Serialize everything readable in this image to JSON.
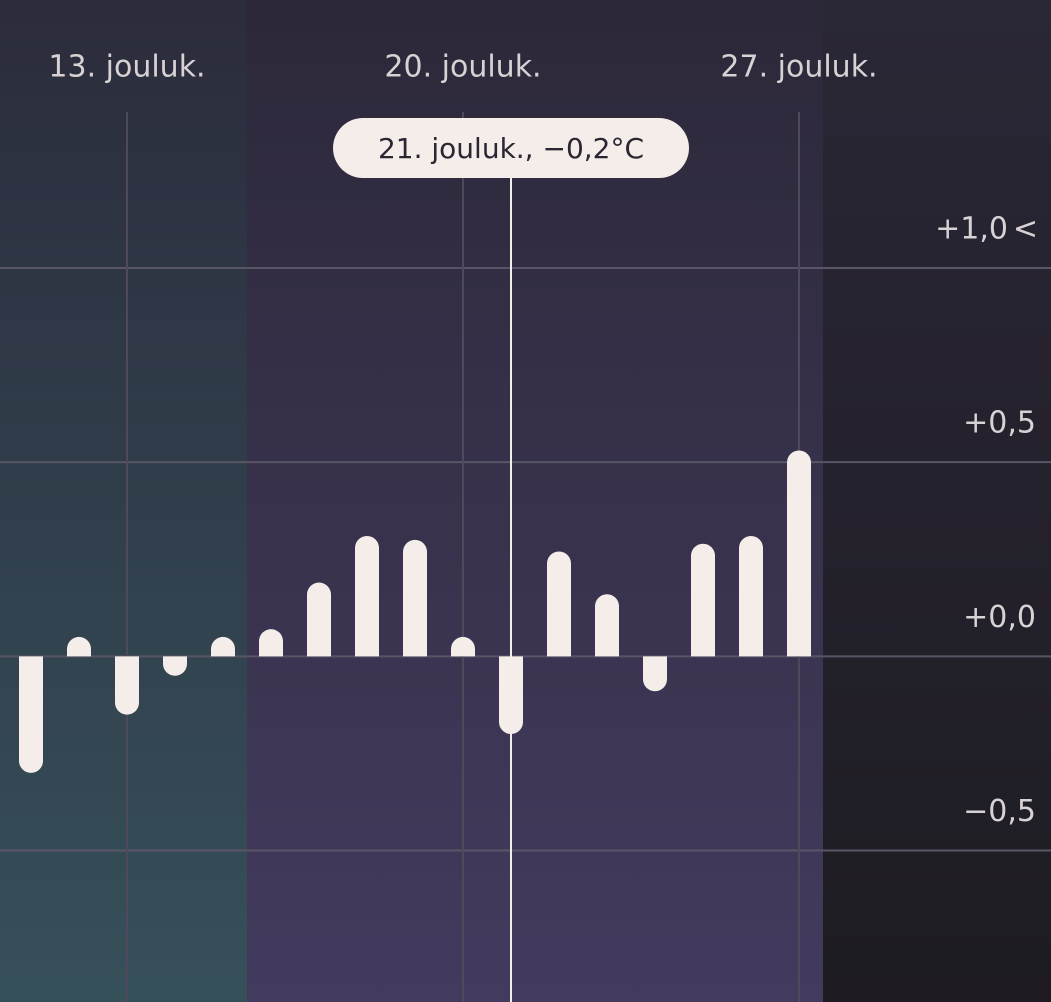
{
  "chart_data": {
    "type": "bar",
    "categories": [
      null,
      null,
      "13. jouluk.",
      null,
      null,
      null,
      null,
      null,
      null,
      "20. jouluk.",
      null,
      null,
      null,
      null,
      null,
      null,
      "27. jouluk."
    ],
    "values": [
      -0.3,
      0.05,
      -0.15,
      -0.05,
      0.05,
      0.07,
      0.19,
      0.31,
      0.3,
      0.05,
      -0.2,
      0.27,
      0.16,
      -0.09,
      0.29,
      0.31,
      0.53
    ],
    "color": "#f5ede9",
    "ylim": [
      -0.89,
      1.69
    ],
    "yticks": [
      {
        "value": 1,
        "label": "+1,0"
      },
      {
        "value": 0.5,
        "label": "+0,5"
      },
      {
        "value": 0,
        "label": "+0,0"
      },
      {
        "value": -0.5,
        "label": "−0,5"
      }
    ],
    "y_axis_arrow": "<",
    "grid": true,
    "tooltip": {
      "index": 10,
      "text": "21. jouluk., −0,2°C"
    }
  }
}
